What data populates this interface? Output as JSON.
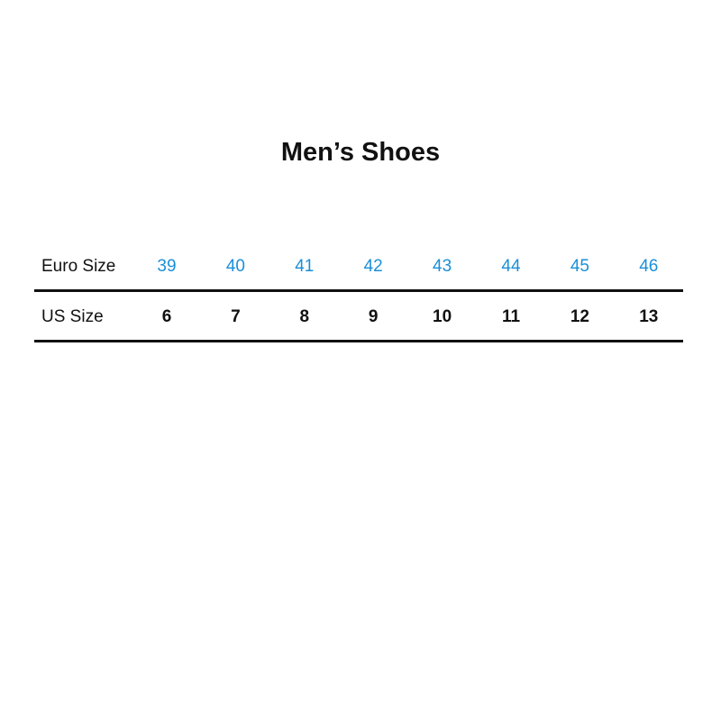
{
  "title": "Men’s Shoes",
  "colors": {
    "euro_value": "#1a8fd8",
    "text": "#111111",
    "rule": "#111111"
  },
  "table": {
    "rows": [
      {
        "label": "Euro Size",
        "values": [
          "39",
          "40",
          "41",
          "42",
          "43",
          "44",
          "45",
          "46"
        ]
      },
      {
        "label": "US Size",
        "values": [
          "6",
          "7",
          "8",
          "9",
          "10",
          "11",
          "12",
          "13"
        ]
      }
    ]
  }
}
